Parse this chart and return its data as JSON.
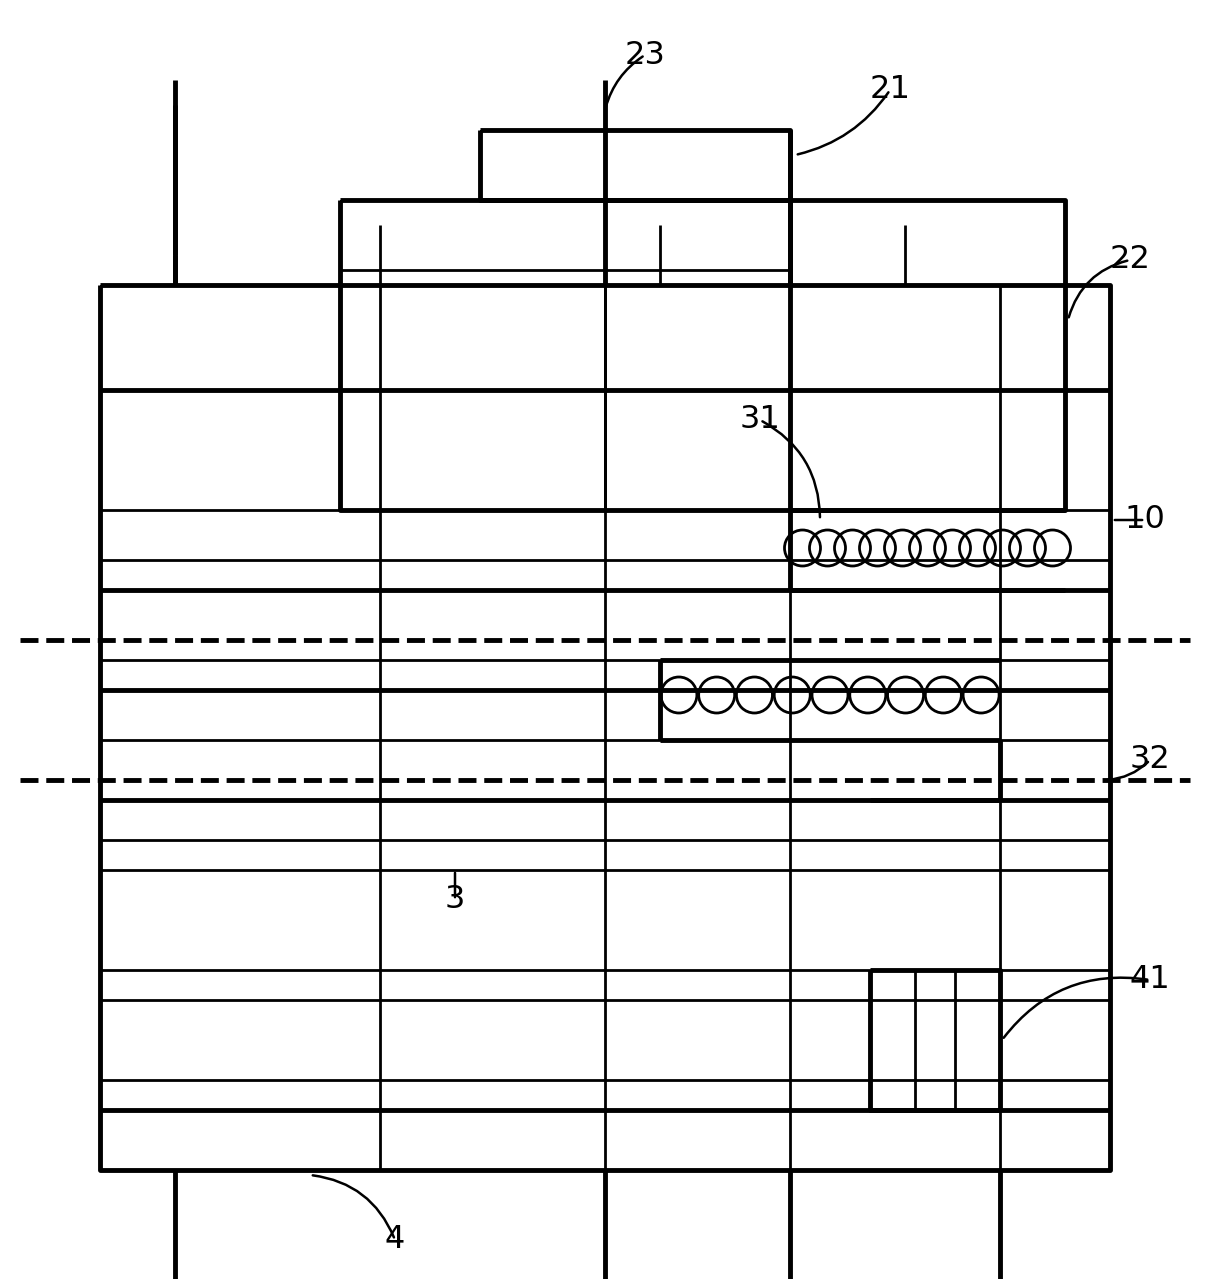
{
  "fig_width": 12.11,
  "fig_height": 12.79,
  "bg_color": "#ffffff",
  "lc": "#000000",
  "lw_thin": 2.0,
  "lw_thick": 3.5,
  "fs": 23
}
